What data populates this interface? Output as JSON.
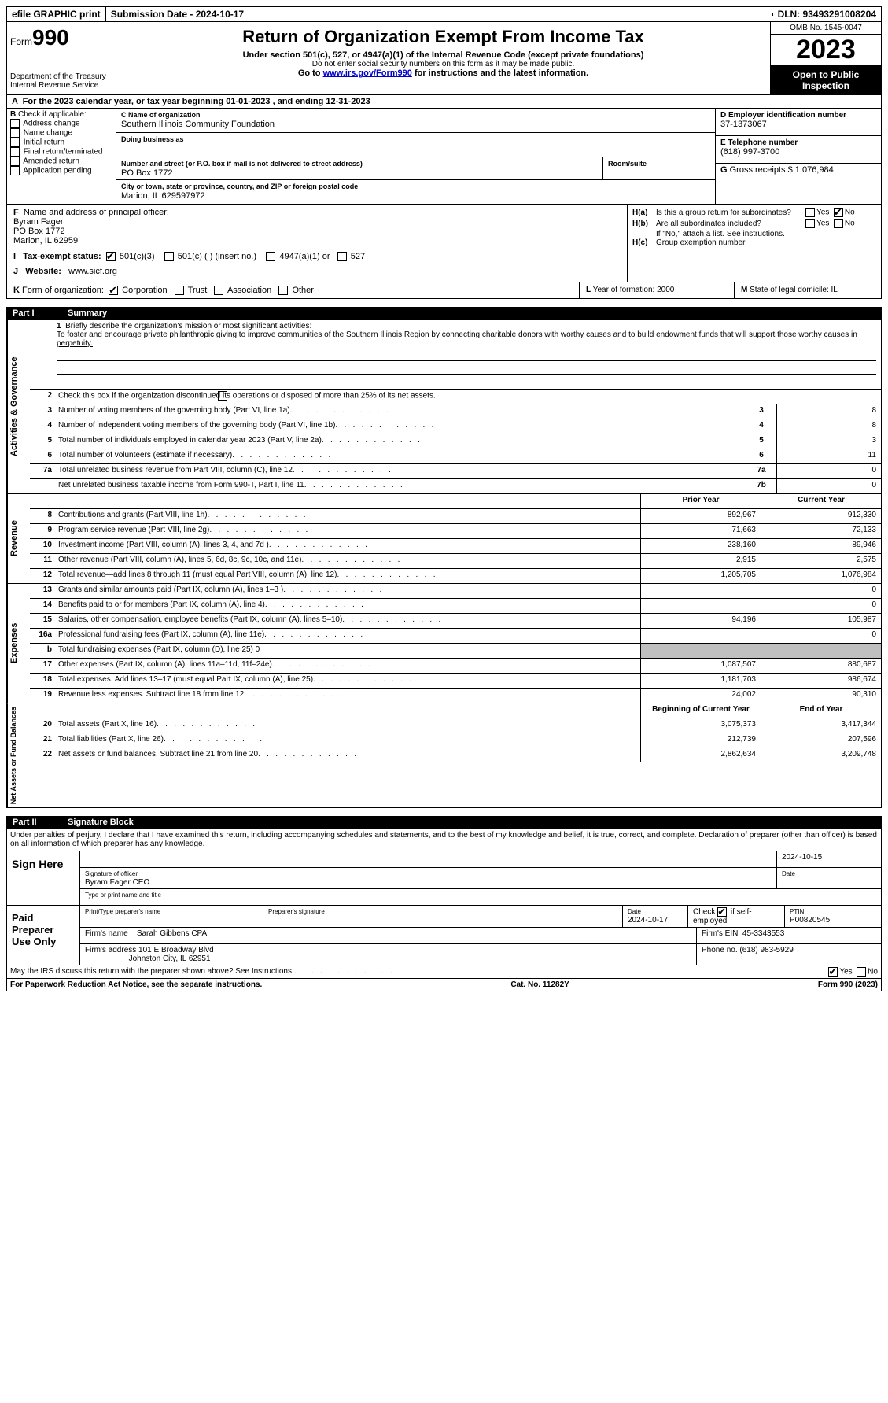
{
  "topbar": {
    "efile": "efile GRAPHIC print",
    "sub_date_lbl": "Submission Date - 2024-10-17",
    "dln": "DLN: 93493291008204"
  },
  "header": {
    "form_lbl": "Form",
    "form_no": "990",
    "dept": "Department of the Treasury",
    "irs": "Internal Revenue Service",
    "title": "Return of Organization Exempt From Income Tax",
    "sub1": "Under section 501(c), 527, or 4947(a)(1) of the Internal Revenue Code (except private foundations)",
    "sub2": "Do not enter social security numbers on this form as it may be made public.",
    "sub3a": "Go to ",
    "sub3_link": "www.irs.gov/Form990",
    "sub3b": " for instructions and the latest information.",
    "omb": "OMB No. 1545-0047",
    "year": "2023",
    "open": "Open to Public Inspection"
  },
  "rowA": "For the 2023 calendar year, or tax year beginning 01-01-2023    , and ending 12-31-2023",
  "boxB": {
    "hdr": "Check if applicable:",
    "items": [
      "Address change",
      "Name change",
      "Initial return",
      "Final return/terminated",
      "Amended return",
      "Application pending"
    ]
  },
  "boxC": {
    "name_lbl": "Name of organization",
    "name": "Southern Illinois Community Foundation",
    "dba_lbl": "Doing business as",
    "dba": "",
    "street_lbl": "Number and street (or P.O. box if mail is not delivered to street address)",
    "street": "PO Box 1772",
    "room_lbl": "Room/suite",
    "city_lbl": "City or town, state or province, country, and ZIP or foreign postal code",
    "city": "Marion, IL  629597972"
  },
  "boxD": {
    "lbl": "Employer identification number",
    "val": "37-1373067"
  },
  "boxE": {
    "lbl": "Telephone number",
    "val": "(618) 997-3700"
  },
  "boxG": {
    "lbl": "Gross receipts $",
    "val": "1,076,984"
  },
  "boxF": {
    "lbl": "Name and address of principal officer:",
    "name": "Byram Fager",
    "street": "PO Box 1772",
    "city": "Marion, IL  62959"
  },
  "boxH": {
    "a_lbl": "Is this a group return for subordinates?",
    "b_lbl": "Are all subordinates included?",
    "b_note": "If \"No,\" attach a list. See instructions.",
    "c_lbl": "Group exemption number",
    "yes": "Yes",
    "no": "No"
  },
  "rowI": {
    "lbl": "Tax-exempt status:",
    "o1": "501(c)(3)",
    "o2": "501(c) (  ) (insert no.)",
    "o3": "4947(a)(1) or",
    "o4": "527"
  },
  "rowJ": {
    "lbl": "Website:",
    "val": "www.sicf.org"
  },
  "rowK": {
    "lbl": "Form of organization:",
    "o1": "Corporation",
    "o2": "Trust",
    "o3": "Association",
    "o4": "Other"
  },
  "rowL": {
    "lbl": "Year of formation:",
    "val": "2000"
  },
  "rowM": {
    "lbl": "State of legal domicile:",
    "val": "IL"
  },
  "part1": {
    "pn": "Part I",
    "title": "Summary"
  },
  "mission": {
    "lbl": "Briefly describe the organization's mission or most significant activities:",
    "text": "To foster and encourage private philanthropic giving to improve communities of the Southern Illinois Region by connecting charitable donors with worthy causes and to build endowment funds that will support those worthy causes in perpetuity."
  },
  "ag": {
    "side": "Activities & Governance",
    "l2": "Check this box        if the organization discontinued its operations or disposed of more than 25% of its net assets.",
    "l3": "Number of voting members of the governing body (Part VI, line 1a)",
    "l4": "Number of independent voting members of the governing body (Part VI, line 1b)",
    "l5": "Total number of individuals employed in calendar year 2023 (Part V, line 2a)",
    "l6": "Total number of volunteers (estimate if necessary)",
    "l7a": "Total unrelated business revenue from Part VIII, column (C), line 12",
    "l7b": "Net unrelated business taxable income from Form 990-T, Part I, line 11",
    "v3": "8",
    "v4": "8",
    "v5": "3",
    "v6": "11",
    "v7a": "0",
    "v7b": "0"
  },
  "rev": {
    "side": "Revenue",
    "hdr_py": "Prior Year",
    "hdr_cy": "Current Year",
    "rows": [
      {
        "n": "8",
        "d": "Contributions and grants (Part VIII, line 1h)",
        "py": "892,967",
        "cy": "912,330"
      },
      {
        "n": "9",
        "d": "Program service revenue (Part VIII, line 2g)",
        "py": "71,663",
        "cy": "72,133"
      },
      {
        "n": "10",
        "d": "Investment income (Part VIII, column (A), lines 3, 4, and 7d )",
        "py": "238,160",
        "cy": "89,946"
      },
      {
        "n": "11",
        "d": "Other revenue (Part VIII, column (A), lines 5, 6d, 8c, 9c, 10c, and 11e)",
        "py": "2,915",
        "cy": "2,575"
      },
      {
        "n": "12",
        "d": "Total revenue—add lines 8 through 11 (must equal Part VIII, column (A), line 12)",
        "py": "1,205,705",
        "cy": "1,076,984"
      }
    ]
  },
  "exp": {
    "side": "Expenses",
    "rows": [
      {
        "n": "13",
        "d": "Grants and similar amounts paid (Part IX, column (A), lines 1–3 )",
        "py": "",
        "cy": "0"
      },
      {
        "n": "14",
        "d": "Benefits paid to or for members (Part IX, column (A), line 4)",
        "py": "",
        "cy": "0"
      },
      {
        "n": "15",
        "d": "Salaries, other compensation, employee benefits (Part IX, column (A), lines 5–10)",
        "py": "94,196",
        "cy": "105,987"
      },
      {
        "n": "16a",
        "d": "Professional fundraising fees (Part IX, column (A), line 11e)",
        "py": "",
        "cy": "0"
      },
      {
        "n": "b",
        "d": "Total fundraising expenses (Part IX, column (D), line 25) 0",
        "py": "grey",
        "cy": "grey"
      },
      {
        "n": "17",
        "d": "Other expenses (Part IX, column (A), lines 11a–11d, 11f–24e)",
        "py": "1,087,507",
        "cy": "880,687"
      },
      {
        "n": "18",
        "d": "Total expenses. Add lines 13–17 (must equal Part IX, column (A), line 25)",
        "py": "1,181,703",
        "cy": "986,674"
      },
      {
        "n": "19",
        "d": "Revenue less expenses. Subtract line 18 from line 12",
        "py": "24,002",
        "cy": "90,310"
      }
    ]
  },
  "na": {
    "side": "Net Assets or Fund Balances",
    "hdr_py": "Beginning of Current Year",
    "hdr_cy": "End of Year",
    "rows": [
      {
        "n": "20",
        "d": "Total assets (Part X, line 16)",
        "py": "3,075,373",
        "cy": "3,417,344"
      },
      {
        "n": "21",
        "d": "Total liabilities (Part X, line 26)",
        "py": "212,739",
        "cy": "207,596"
      },
      {
        "n": "22",
        "d": "Net assets or fund balances. Subtract line 21 from line 20",
        "py": "2,862,634",
        "cy": "3,209,748"
      }
    ]
  },
  "part2": {
    "pn": "Part II",
    "title": "Signature Block"
  },
  "sig_intro": "Under penalties of perjury, I declare that I have examined this return, including accompanying schedules and statements, and to the best of my knowledge and belief, it is true, correct, and complete. Declaration of preparer (other than officer) is based on all information of which preparer has any knowledge.",
  "sign_here": {
    "side": "Sign Here",
    "date": "2024-10-15",
    "sig_lbl": "Signature of officer",
    "name": "Byram Fager  CEO",
    "name_lbl": "Type or print name and title",
    "date_lbl": "Date"
  },
  "preparer": {
    "side": "Paid Preparer Use Only",
    "print_lbl": "Print/Type preparer's name",
    "sig_lbl": "Preparer's signature",
    "date_lbl": "Date",
    "date": "2024-10-17",
    "check_lbl": "Check",
    "check_suffix": "if self-employed",
    "ptin_lbl": "PTIN",
    "ptin": "P00820545",
    "firm_name_lbl": "Firm's name",
    "firm_name": "Sarah Gibbens CPA",
    "firm_ein_lbl": "Firm's EIN",
    "firm_ein": "45-3343553",
    "firm_addr_lbl": "Firm's address",
    "firm_addr1": "101 E Broadway Blvd",
    "firm_addr2": "Johnston City, IL  62951",
    "phone_lbl": "Phone no.",
    "phone": "(618) 983-5929"
  },
  "discuss": "May the IRS discuss this return with the preparer shown above? See Instructions.",
  "footer": {
    "pra": "For Paperwork Reduction Act Notice, see the separate instructions.",
    "cat": "Cat. No. 11282Y",
    "form": "Form 990 (2023)"
  }
}
